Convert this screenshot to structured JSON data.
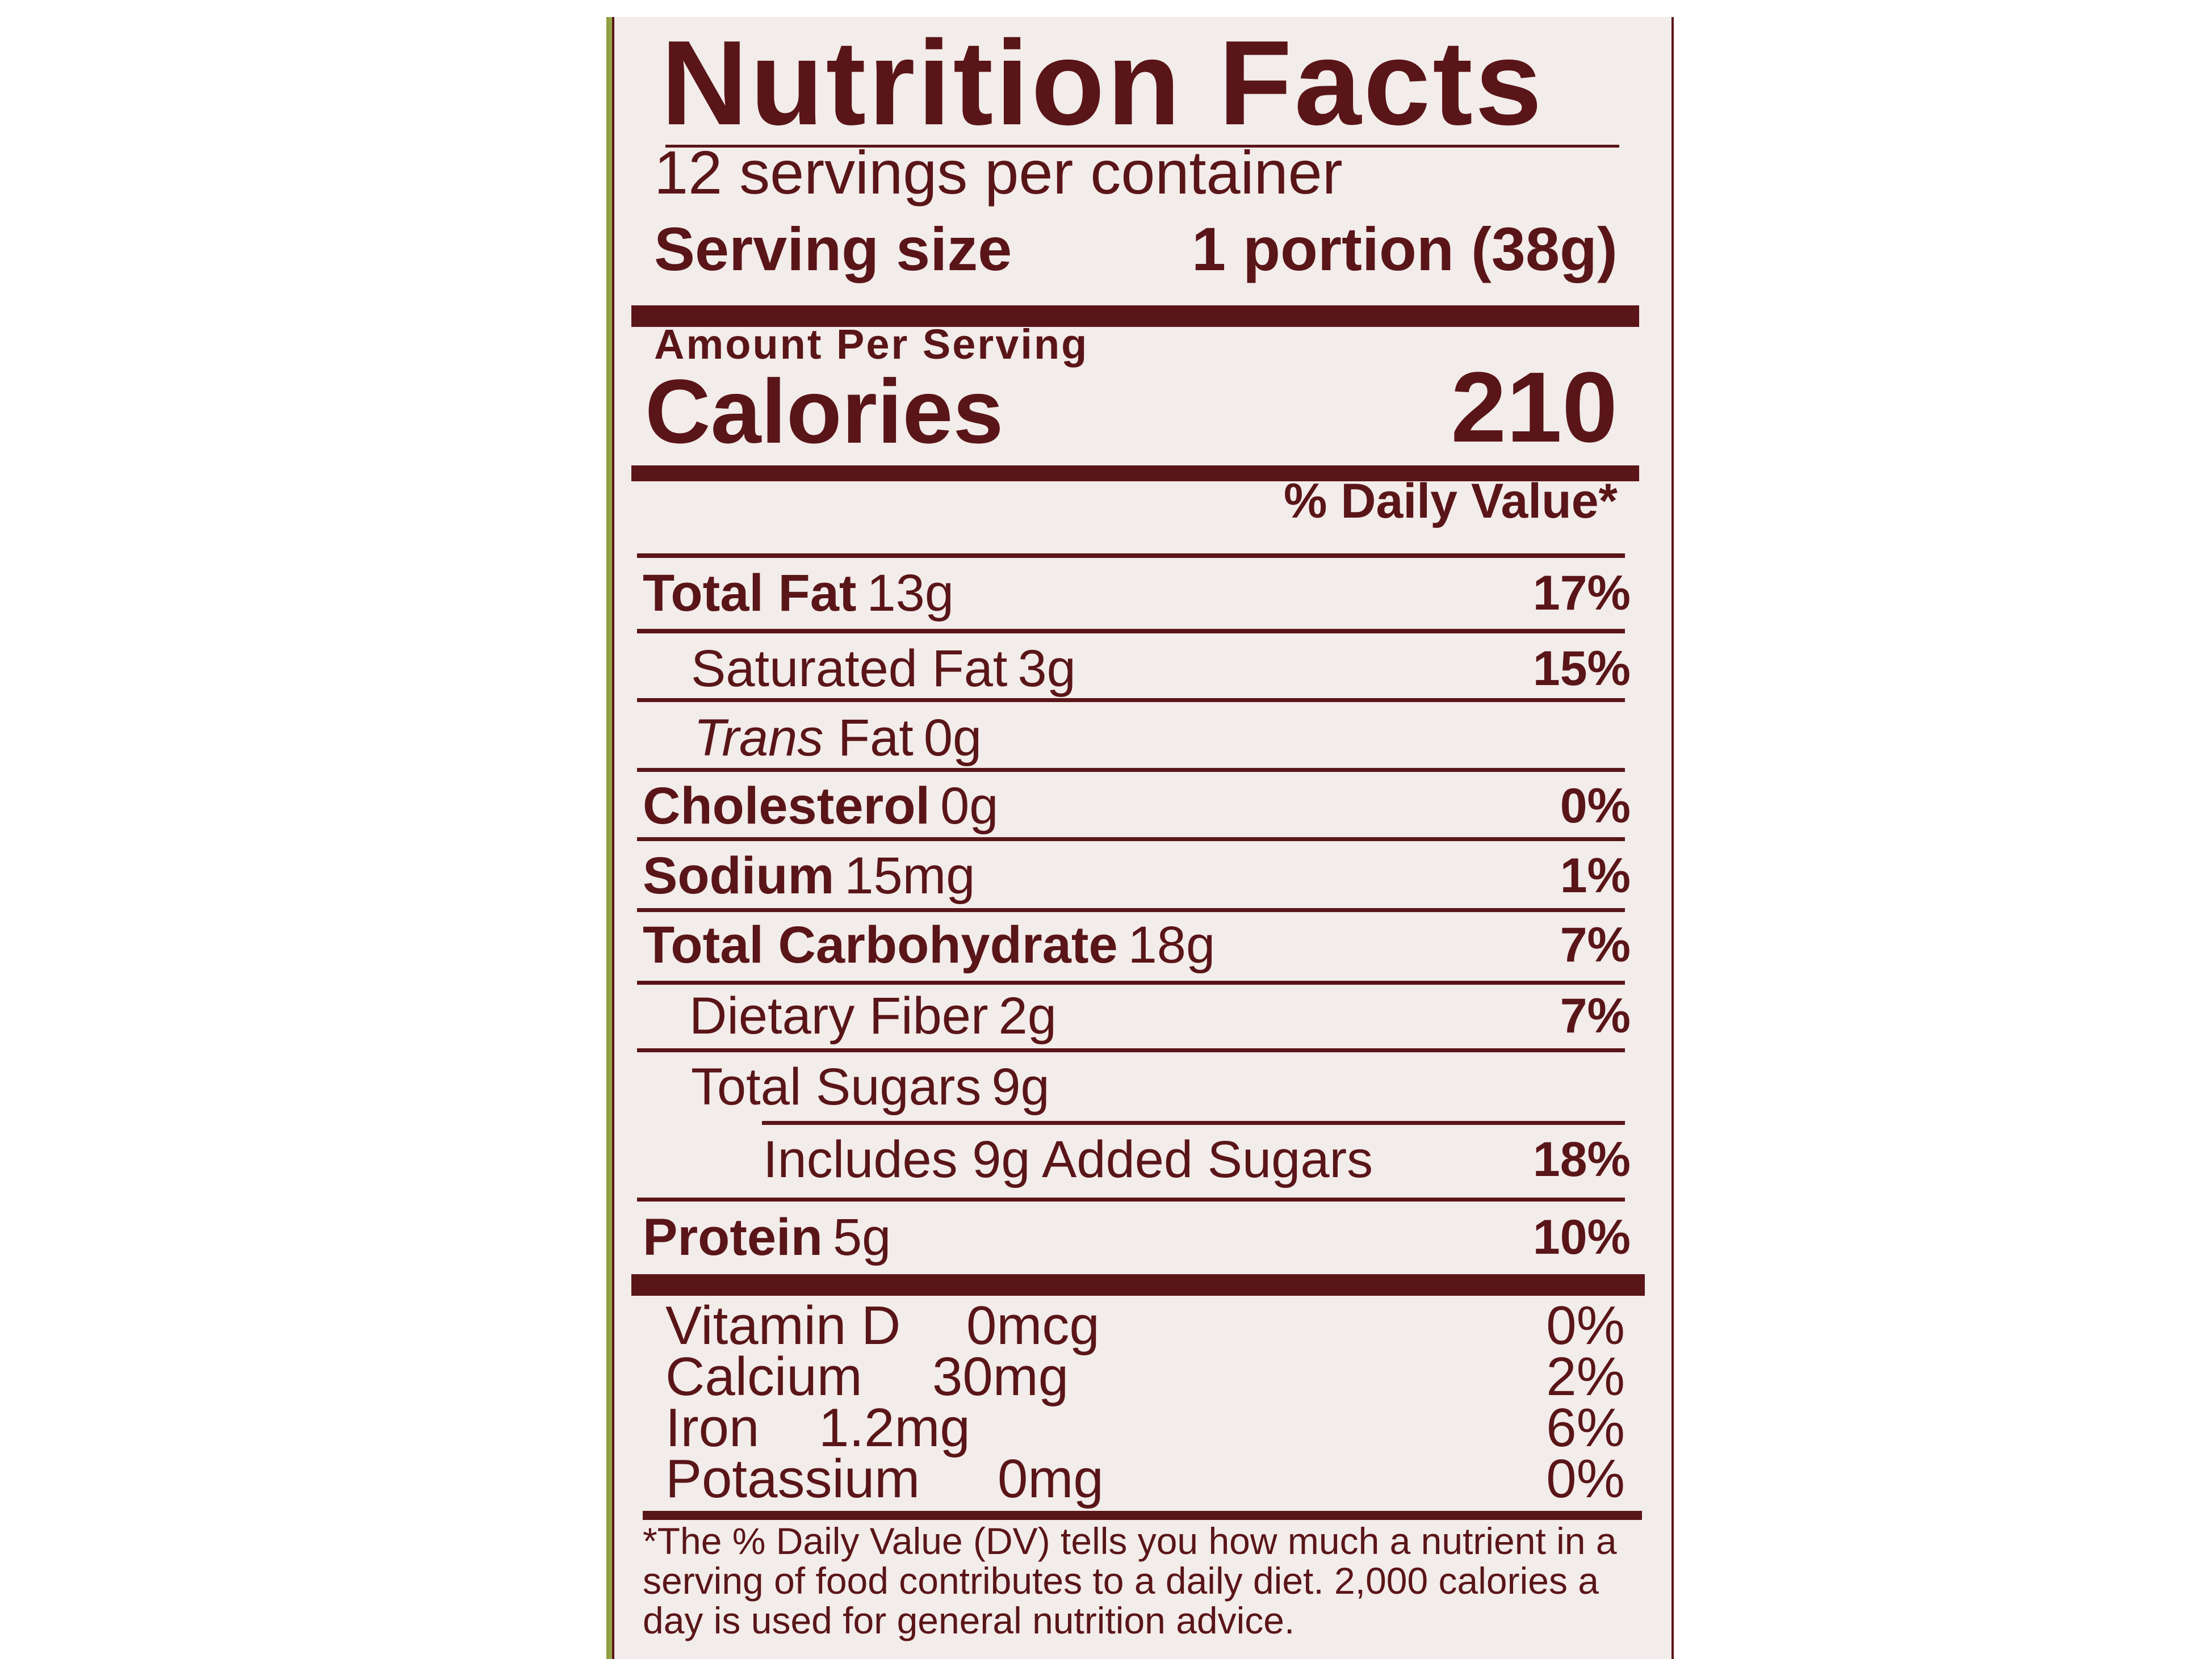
{
  "panel": {
    "title": "Nutrition Facts",
    "servings_per_container": "12 servings per container",
    "serving_size_label": "Serving size",
    "serving_size_value": "1 portion (38g)",
    "amount_per_serving": "Amount Per Serving",
    "calories_label": "Calories",
    "calories_value": "210",
    "daily_value_header": "% Daily Value*"
  },
  "nutrients": [
    {
      "label": "Total Fat",
      "amount": "13g",
      "dv": "17%"
    },
    {
      "label": "Saturated Fat",
      "amount": "3g",
      "dv": "15%"
    },
    {
      "label": "Trans",
      "label_rest": "Fat",
      "amount": "0g",
      "dv": ""
    },
    {
      "label": "Cholesterol",
      "amount": "0g",
      "dv": "0%"
    },
    {
      "label": "Sodium",
      "amount": "15mg",
      "dv": "1%"
    },
    {
      "label": "Total Carbohydrate",
      "amount": "18g",
      "dv": "7%"
    },
    {
      "label": "Dietary Fiber",
      "amount": "2g",
      "dv": "7%"
    },
    {
      "label": "Total Sugars",
      "amount": "9g",
      "dv": ""
    },
    {
      "label": "Includes 9g Added Sugars",
      "amount": "",
      "dv": "18%"
    },
    {
      "label": "Protein",
      "amount": "5g",
      "dv": "10%"
    }
  ],
  "vitamins": [
    {
      "label": "Vitamin D",
      "amount": "0mcg",
      "dv": "0%"
    },
    {
      "label": "Calcium",
      "amount": "30mg",
      "dv": "2%"
    },
    {
      "label": "Iron",
      "amount": "1.2mg",
      "dv": "6%"
    },
    {
      "label": "Potassium",
      "amount": "0mg",
      "dv": "0%"
    }
  ],
  "footnote": "*The % Daily Value (DV) tells you how much a nutrient in a serving of food contributes to a daily diet. 2,000 calories a day is used for general nutrition advice.",
  "colors": {
    "ink": "#5a1518",
    "paper": "#f2ecea",
    "edge": "#9aab45"
  }
}
